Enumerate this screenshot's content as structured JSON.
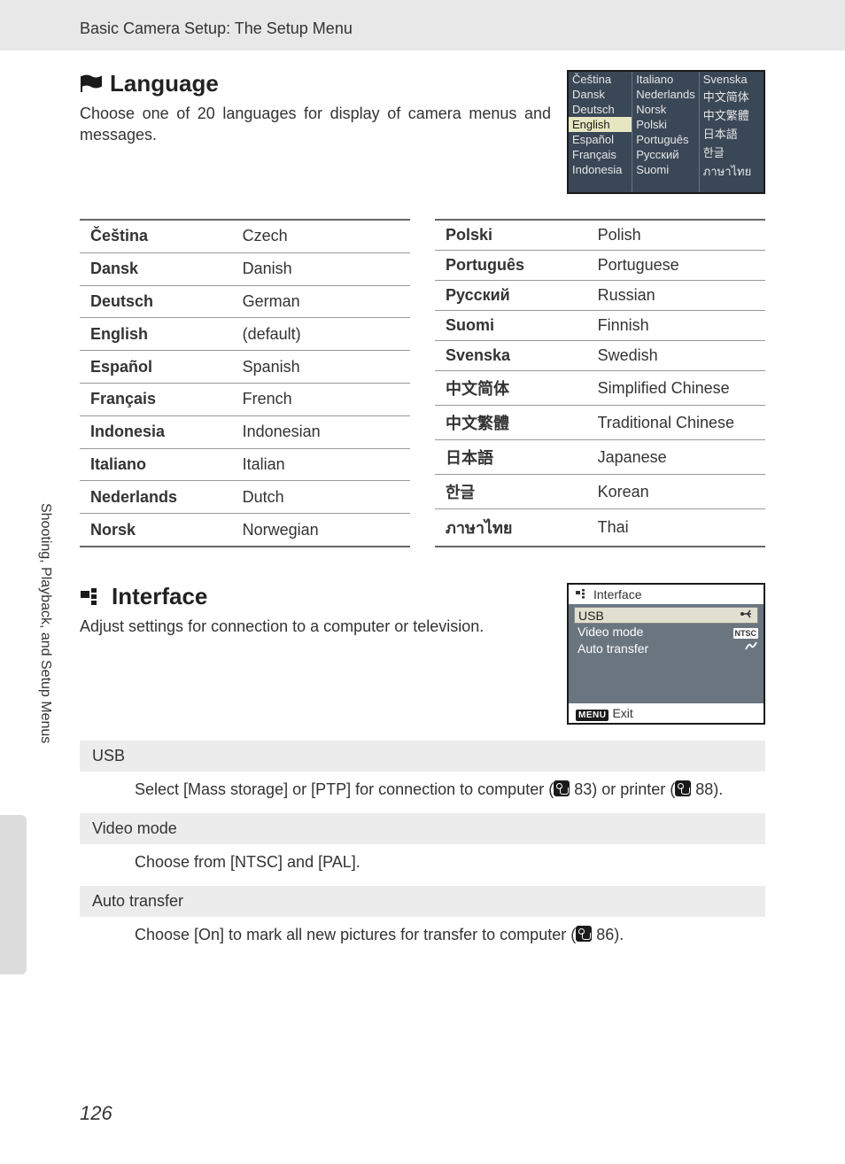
{
  "header": {
    "breadcrumb": "Basic Camera Setup: The Setup Menu"
  },
  "sidebar": {
    "text": "Shooting, Playback, and Setup Menus"
  },
  "page_number": "126",
  "language_section": {
    "title": "Language",
    "description": "Choose one of 20 languages for display of camera menus and messages.",
    "screenshot": {
      "cols": [
        [
          "Čeština",
          "Dansk",
          "Deutsch",
          "English",
          "Español",
          "Français",
          "Indonesia"
        ],
        [
          "Italiano",
          "Nederlands",
          "Norsk",
          "Polski",
          "Português",
          "Русский",
          "Suomi"
        ],
        [
          "Svenska",
          "中文简体",
          "中文繁體",
          "日本語",
          "한글",
          "ภาษาไทย",
          ""
        ]
      ],
      "selected": "English"
    },
    "tables": {
      "left": [
        {
          "native": "Čeština",
          "english": "Czech"
        },
        {
          "native": "Dansk",
          "english": "Danish"
        },
        {
          "native": "Deutsch",
          "english": "German"
        },
        {
          "native": "English",
          "english": "(default)"
        },
        {
          "native": "Español",
          "english": "Spanish"
        },
        {
          "native": "Français",
          "english": "French"
        },
        {
          "native": "Indonesia",
          "english": "Indonesian"
        },
        {
          "native": "Italiano",
          "english": "Italian"
        },
        {
          "native": "Nederlands",
          "english": "Dutch"
        },
        {
          "native": "Norsk",
          "english": "Norwegian"
        }
      ],
      "right": [
        {
          "native": "Polski",
          "english": "Polish"
        },
        {
          "native": "Português",
          "english": "Portuguese"
        },
        {
          "native": "Русский",
          "english": "Russian"
        },
        {
          "native": "Suomi",
          "english": "Finnish"
        },
        {
          "native": "Svenska",
          "english": "Swedish"
        },
        {
          "native": "中文简体",
          "english": "Simplified Chinese"
        },
        {
          "native": "中文繁體",
          "english": "Traditional Chinese"
        },
        {
          "native": "日本語",
          "english": "Japanese"
        },
        {
          "native": "한글",
          "english": "Korean"
        },
        {
          "native": "ภาษาไทย",
          "english": "Thai"
        }
      ]
    }
  },
  "interface_section": {
    "title": "Interface",
    "description": "Adjust settings for connection to a computer or television.",
    "screenshot": {
      "title": "Interface",
      "items": [
        "USB",
        "Video mode",
        "Auto transfer"
      ],
      "selected": "USB",
      "footer_button": "MENU",
      "footer_text": "Exit"
    },
    "options": [
      {
        "head": "USB",
        "text_pre": "Select [Mass storage] or [PTP] for connection to computer (",
        "ref1": "83",
        "text_mid": ") or printer (",
        "ref2": "88",
        "text_post": ")."
      },
      {
        "head": "Video mode",
        "text_pre": "Choose from [NTSC] and [PAL].",
        "ref1": "",
        "text_mid": "",
        "ref2": "",
        "text_post": ""
      },
      {
        "head": "Auto transfer",
        "text_pre": "Choose [On] to mark all new pictures for transfer to computer (",
        "ref1": "86",
        "text_mid": "",
        "ref2": "",
        "text_post": ")."
      }
    ]
  }
}
